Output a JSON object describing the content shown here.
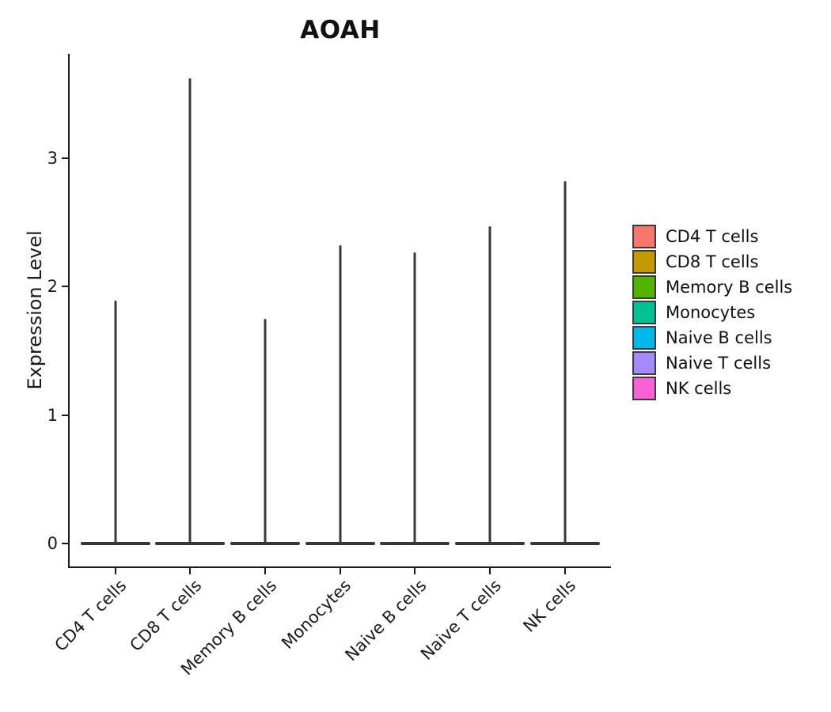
{
  "title": "AOAH",
  "chart_data": {
    "type": "violin",
    "title": "AOAH",
    "xlabel": "",
    "ylabel": "Expression Level",
    "categories": [
      "CD4 T cells",
      "CD8 T cells",
      "Memory B cells",
      "Monocytes",
      "Naive B cells",
      "Naive T cells",
      "NK cells"
    ],
    "violins": [
      {
        "category": "CD4 T cells",
        "color": "#F8766D",
        "bulk_at": 0,
        "max_expression": 1.89
      },
      {
        "category": "CD8 T cells",
        "color": "#C49A00",
        "bulk_at": 0,
        "max_expression": 3.62
      },
      {
        "category": "Memory B cells",
        "color": "#53B400",
        "bulk_at": 0,
        "max_expression": 1.75
      },
      {
        "category": "Monocytes",
        "color": "#00C094",
        "bulk_at": 0,
        "max_expression": 2.32
      },
      {
        "category": "Naive B cells",
        "color": "#00B6EB",
        "bulk_at": 0,
        "max_expression": 2.27
      },
      {
        "category": "Naive T cells",
        "color": "#A58AFF",
        "bulk_at": 0,
        "max_expression": 2.47
      },
      {
        "category": "NK cells",
        "color": "#FB61D7",
        "bulk_at": 0,
        "max_expression": 2.82
      }
    ],
    "y_ticks": [
      0,
      1,
      2,
      3
    ],
    "ylim": [
      0,
      3.8
    ],
    "grid": false,
    "legend_position": "right",
    "legend": [
      {
        "label": "CD4 T cells",
        "color": "#F8766D"
      },
      {
        "label": "CD8 T cells",
        "color": "#C49A00"
      },
      {
        "label": "Memory B cells",
        "color": "#53B400"
      },
      {
        "label": "Monocytes",
        "color": "#00C094"
      },
      {
        "label": "Naive B cells",
        "color": "#00B6EB"
      },
      {
        "label": "Naive T cells",
        "color": "#A58AFF"
      },
      {
        "label": "NK cells",
        "color": "#FB61D7"
      }
    ],
    "axis_color": "#1A1A1A",
    "violin_outline_color": "#3A3A3A"
  }
}
